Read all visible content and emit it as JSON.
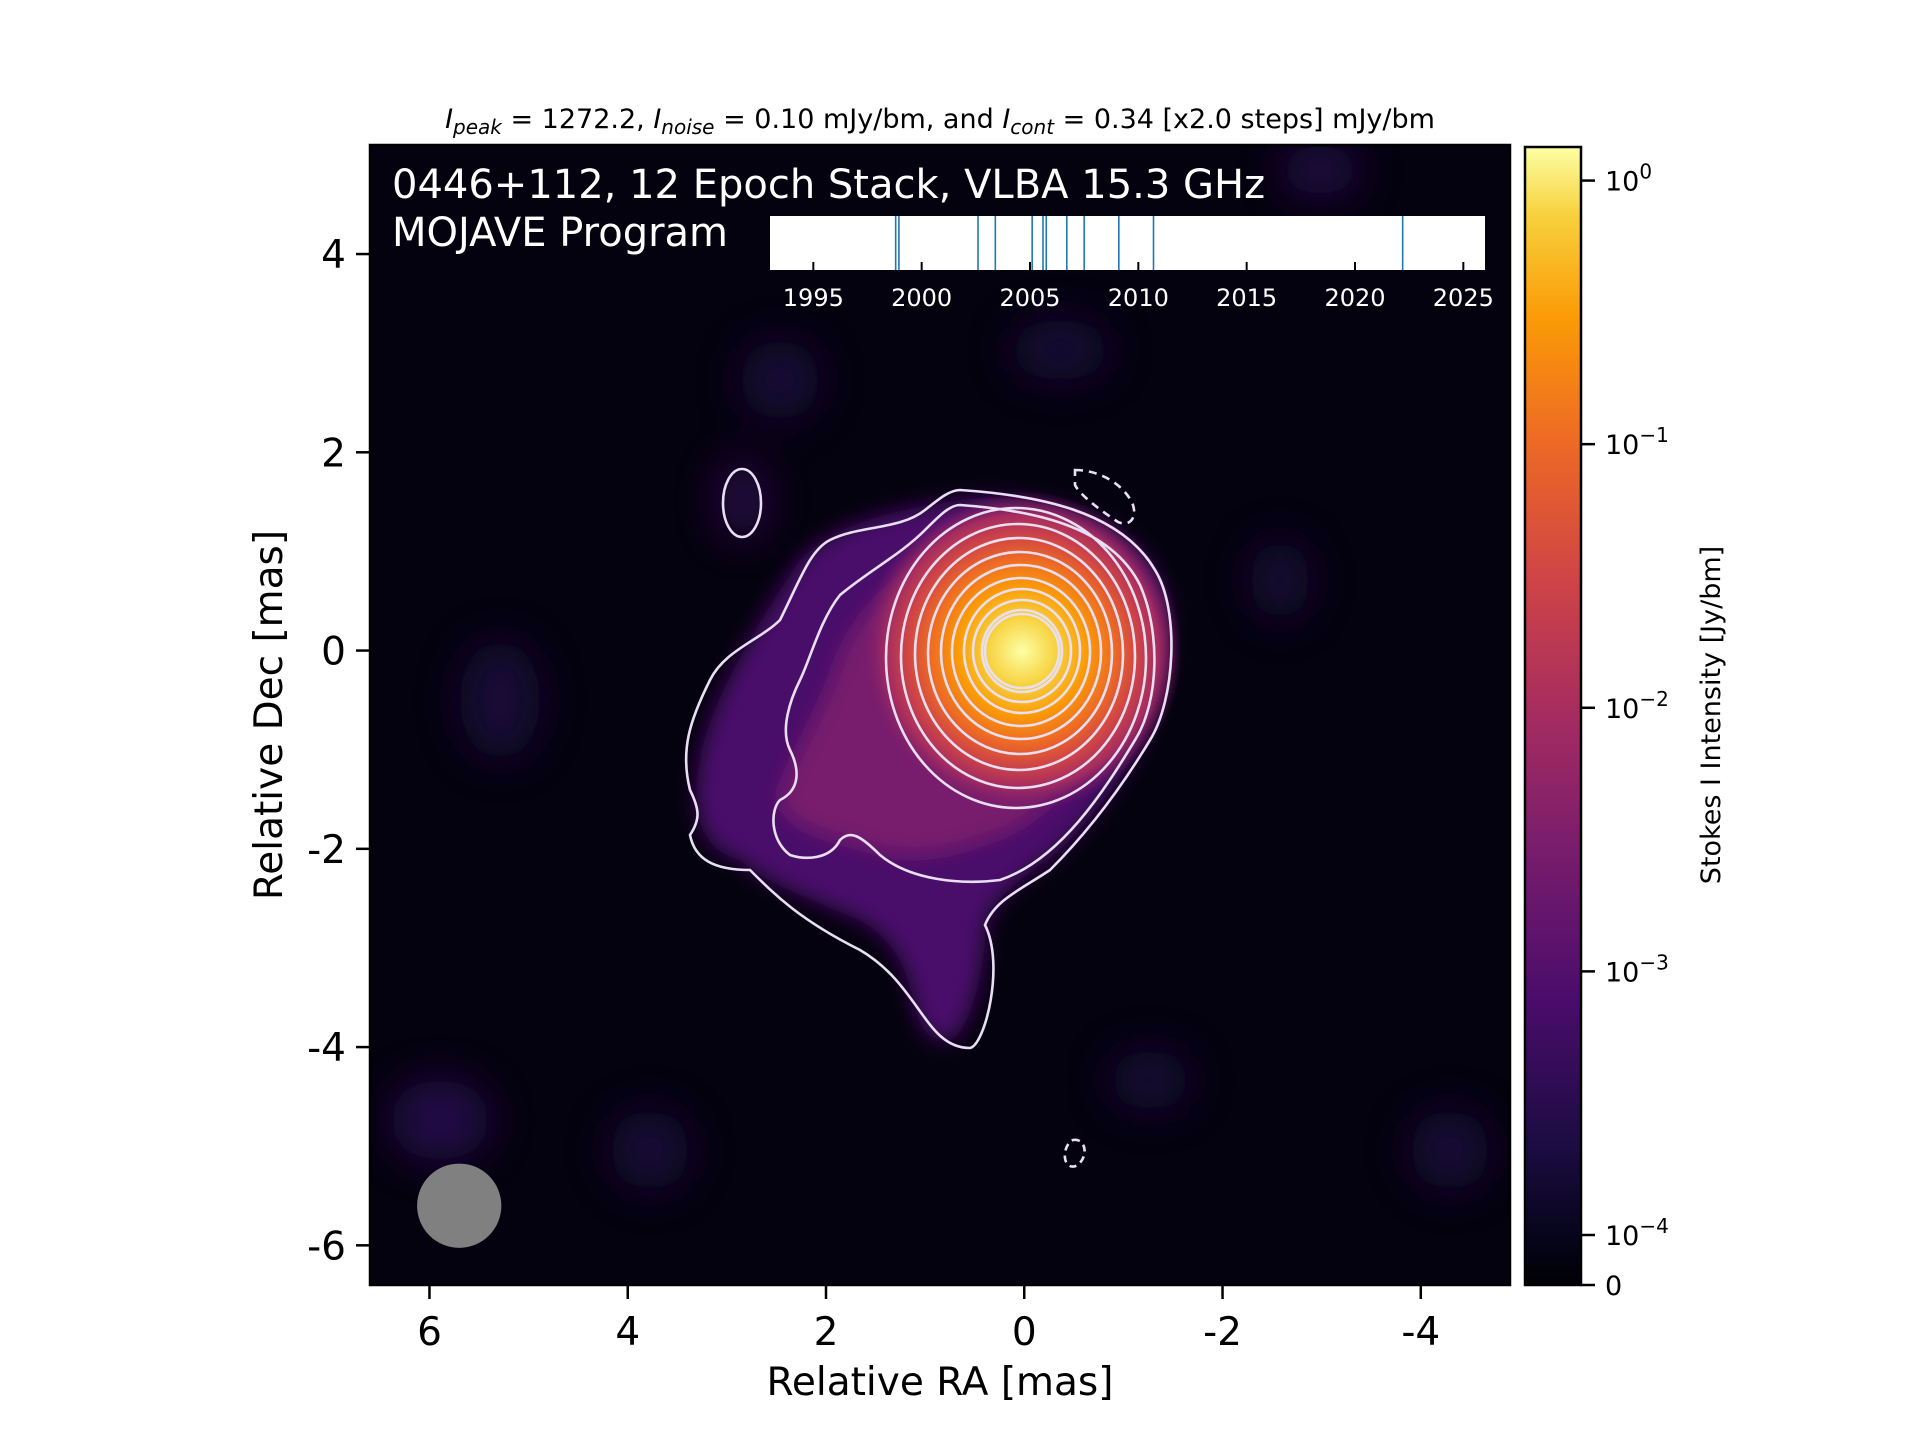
{
  "chart_data": {
    "type": "heatmap",
    "title_parts": {
      "peak_sym": "I",
      "peak_sub": "peak",
      "peak_val": " = 1272.2, ",
      "noise_sym": "I",
      "noise_sub": "noise",
      "noise_val": " = 0.10 mJy/bm, and ",
      "cont_sym": "I",
      "cont_sub": "cont",
      "cont_val": " = 0.34 [x2.0 steps] mJy/bm"
    },
    "overlay_title_line1": "0446+112, 12 Epoch Stack, VLBA 15.3 GHz",
    "overlay_title_line2": "MOJAVE Program",
    "xlabel": "Relative RA [mas]",
    "ylabel": "Relative Dec [mas]",
    "x_axis_inverted": true,
    "xlim": [
      6.6,
      -4.9
    ],
    "ylim": [
      -6.4,
      5.1
    ],
    "x_ticks": [
      6,
      4,
      2,
      0,
      -2,
      -4
    ],
    "x_tick_labels": [
      "6",
      "4",
      "2",
      "0",
      "-2",
      "-4"
    ],
    "y_ticks": [
      4,
      2,
      0,
      -2,
      -4,
      -6
    ],
    "y_tick_labels": [
      "4",
      "2",
      "0",
      "-2",
      "-4",
      "-6"
    ],
    "colorbar": {
      "label": "Stokes I Intensity [Jy/bm]",
      "scale": "log",
      "range": [
        0,
        1.2722
      ],
      "ticks": [
        {
          "value": 1,
          "base": "10",
          "exp": "0"
        },
        {
          "value": 0.1,
          "base": "10",
          "exp": "−1"
        },
        {
          "value": 0.01,
          "base": "10",
          "exp": "−2"
        },
        {
          "value": 0.001,
          "base": "10",
          "exp": "−3"
        },
        {
          "value": 0.0001,
          "base": "10",
          "exp": "−4"
        },
        {
          "value": 0,
          "base": "0",
          "exp": ""
        }
      ],
      "colormap": "inferno",
      "colors": [
        "#000004",
        "#1b0c41",
        "#4a0c6b",
        "#781c6d",
        "#a52c60",
        "#cf4446",
        "#ed6925",
        "#fb9b06",
        "#f7d13d",
        "#fcffa4"
      ]
    },
    "peak_jy": 1.2722,
    "noise_mjy": 0.1,
    "lowest_contour_mjy": 0.34,
    "contour_step_factor": 2.0,
    "contour_color": "#e8e0f2",
    "negative_contour_style": "dashed",
    "beam": {
      "x": 5.7,
      "y": -5.6,
      "major_mas": 0.85,
      "minor_mas": 0.85,
      "color": "#808080"
    },
    "epoch_timeline": {
      "range": [
        1993,
        2026
      ],
      "ticks": [
        1995,
        2000,
        2005,
        2010,
        2015,
        2020,
        2025
      ],
      "tick_labels": [
        "1995",
        "2000",
        "2005",
        "2010",
        "2015",
        "2020",
        "2025"
      ],
      "epochs": [
        1998.8,
        1998.95,
        2002.6,
        2003.4,
        2005.1,
        2005.6,
        2005.75,
        2006.7,
        2007.5,
        2009.1,
        2010.7,
        2022.2
      ],
      "epoch_color": "#1f77b4"
    }
  }
}
